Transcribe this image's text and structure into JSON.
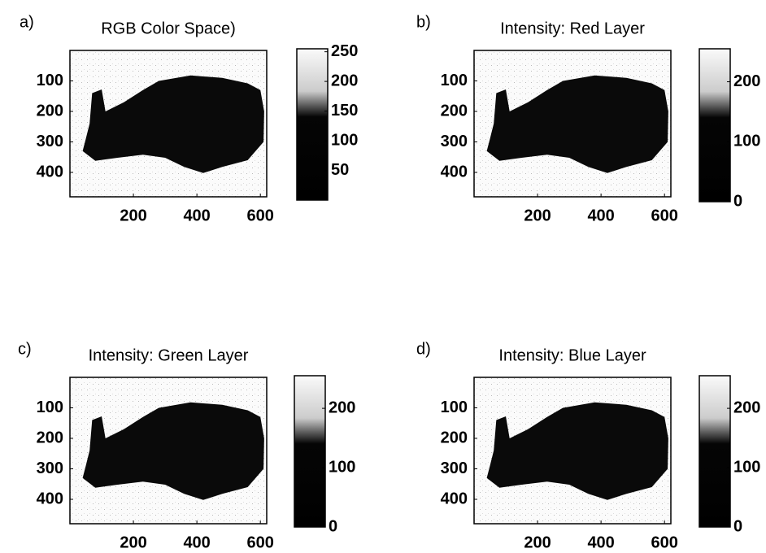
{
  "chart_data": [
    {
      "type": "image",
      "panel_label": "a)",
      "title": "RGB Color Space)",
      "xlim": [
        0,
        620
      ],
      "ylim": [
        480,
        0
      ],
      "xticks": [
        200,
        400,
        600
      ],
      "yticks": [
        100,
        200,
        300,
        400
      ],
      "clim": [
        0,
        255
      ],
      "cticks": [
        50,
        100,
        150,
        200,
        250
      ]
    },
    {
      "type": "image",
      "panel_label": "b)",
      "title": "Intensity: Red Layer",
      "xlim": [
        0,
        620
      ],
      "ylim": [
        480,
        0
      ],
      "xticks": [
        200,
        400,
        600
      ],
      "yticks": [
        100,
        200,
        300,
        400
      ],
      "clim": [
        0,
        255
      ],
      "cticks": [
        0,
        100,
        200
      ]
    },
    {
      "type": "image",
      "panel_label": "c)",
      "title": "Intensity: Green Layer",
      "xlim": [
        0,
        620
      ],
      "ylim": [
        480,
        0
      ],
      "xticks": [
        200,
        400,
        600
      ],
      "yticks": [
        100,
        200,
        300,
        400
      ],
      "clim": [
        0,
        255
      ],
      "cticks": [
        0,
        100,
        200
      ]
    },
    {
      "type": "image",
      "panel_label": "d)",
      "title": "Intensity: Blue Layer",
      "xlim": [
        0,
        620
      ],
      "ylim": [
        480,
        0
      ],
      "xticks": [
        200,
        400,
        600
      ],
      "yticks": [
        100,
        200,
        300,
        400
      ],
      "clim": [
        0,
        255
      ],
      "cticks": [
        0,
        100,
        200
      ]
    }
  ]
}
